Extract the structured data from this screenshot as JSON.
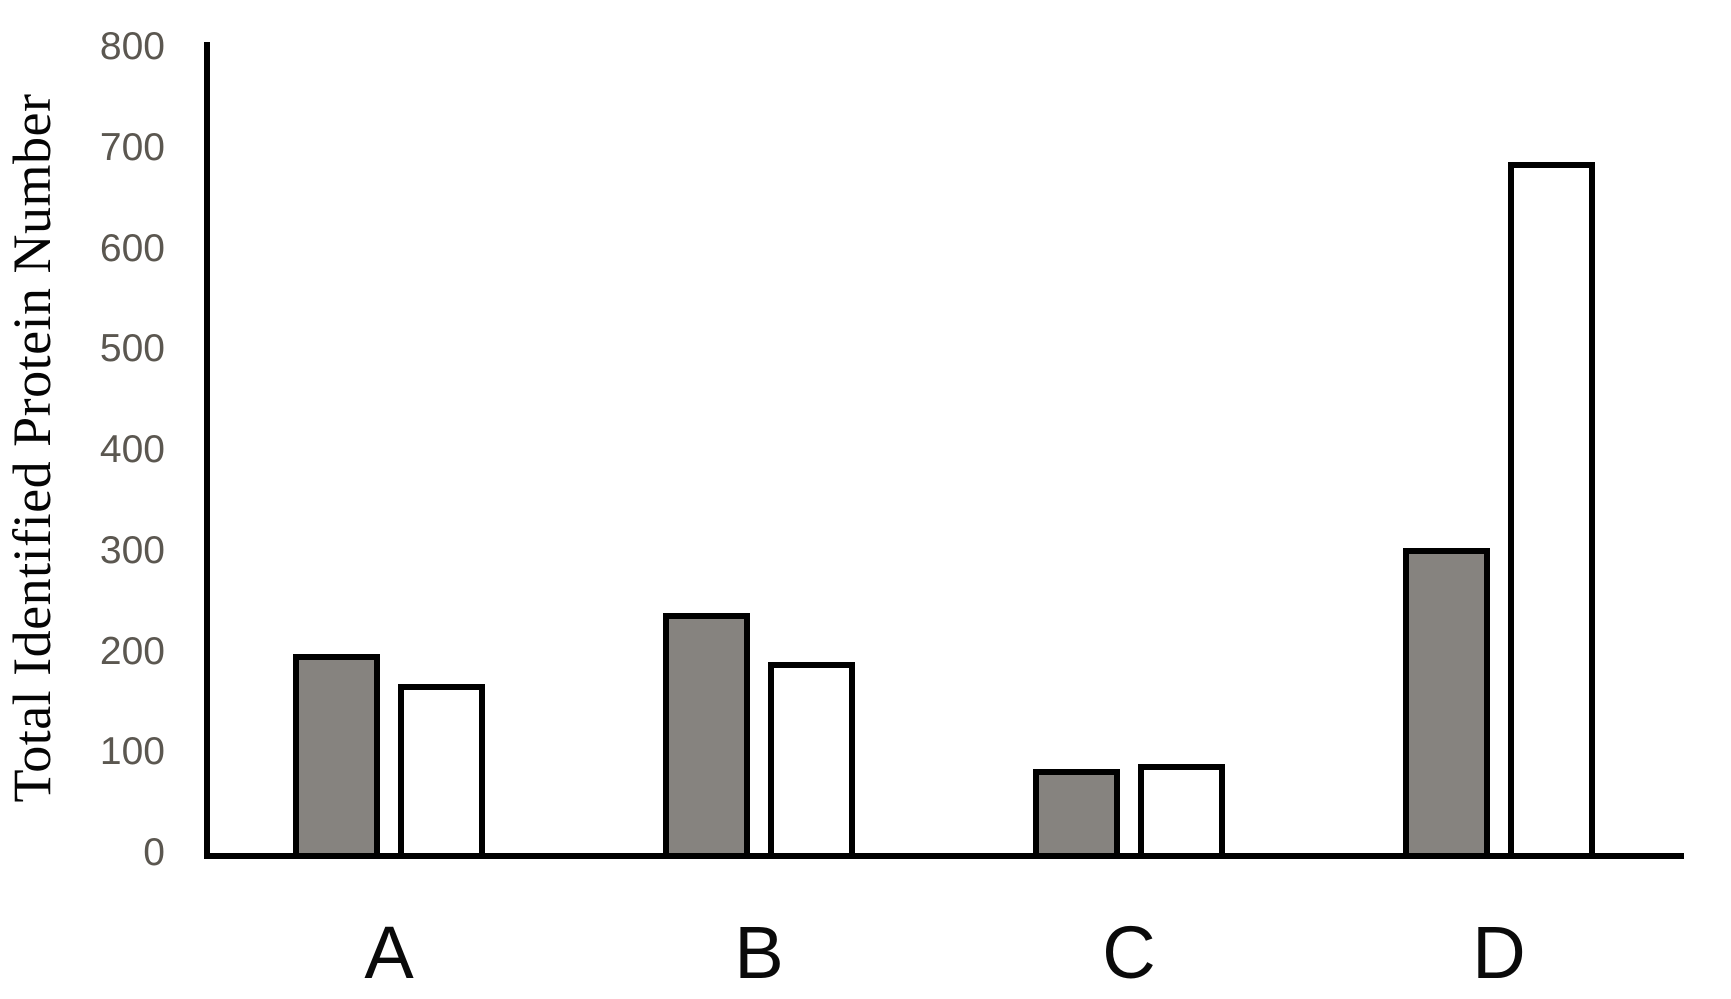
{
  "chart_data": {
    "type": "bar",
    "title": "",
    "ylabel": "Total Identified Protein Number",
    "xlabel": "",
    "categories": [
      "A",
      "B",
      "C",
      "D"
    ],
    "series": [
      {
        "name": "gray-filled-bars",
        "fill": "#86837F",
        "border_color": "#000000",
        "values": [
          195,
          235,
          80,
          300
        ]
      },
      {
        "name": "white-outlined-bars",
        "fill": "#FFFFFF",
        "border_color": "#000000",
        "values": [
          165,
          187,
          85,
          683
        ]
      }
    ],
    "ylim": [
      0,
      800
    ],
    "yticks": [
      0,
      100,
      200,
      300,
      400,
      500,
      600,
      700,
      800
    ],
    "grid": false,
    "legend": false,
    "tick_label_color": "#5B5750",
    "category_label_color": "#0A0A0A",
    "axis_line_color": "#000000",
    "background_color": "#FFFFFF"
  }
}
